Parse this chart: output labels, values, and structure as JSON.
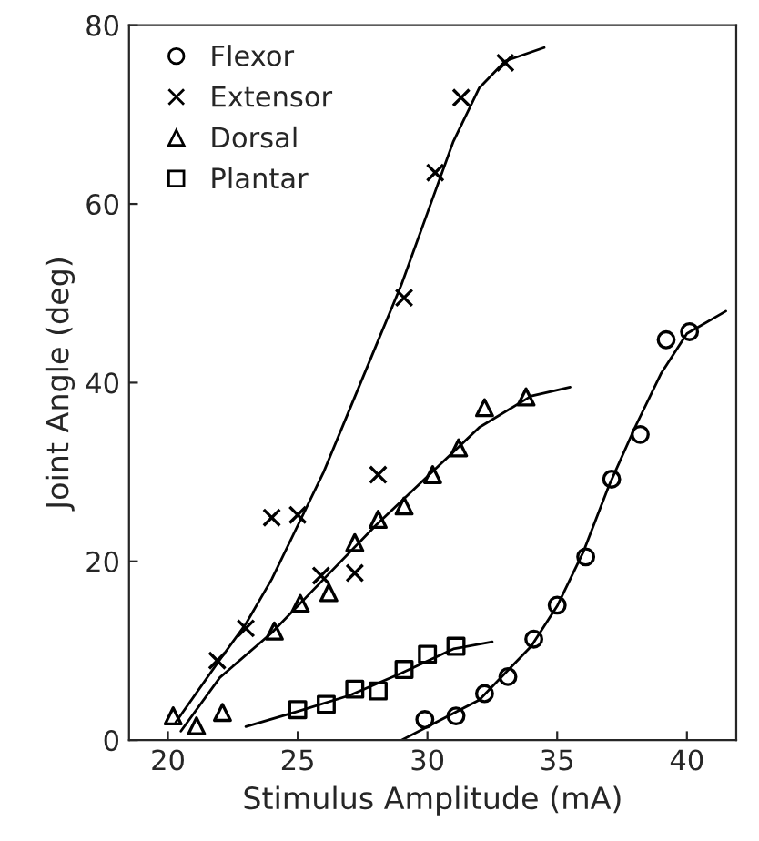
{
  "chart_data": {
    "type": "scatter",
    "xlabel": "Stimulus Amplitude (mA)",
    "ylabel": "Joint Angle (deg)",
    "xlim": [
      18.5,
      41.9
    ],
    "xticks": [
      20,
      25,
      30,
      35,
      40
    ],
    "ylim": [
      0,
      80
    ],
    "yticks": [
      0,
      20,
      40,
      60,
      80
    ],
    "grid": false,
    "legend": "top left",
    "series": [
      {
        "name": "Flexor",
        "color": "#000000",
        "marker": "circle",
        "x": [
          29.9,
          31.1,
          32.2,
          33.1,
          34.1,
          35.0,
          36.1,
          37.1,
          38.2,
          39.2,
          40.1
        ],
        "values": [
          2.3,
          2.7,
          5.2,
          7.1,
          11.3,
          15.1,
          20.5,
          29.2,
          34.2,
          44.8,
          45.7
        ]
      },
      {
        "name": "Extensor",
        "color": "#000000",
        "marker": "cross",
        "x": [
          21.9,
          23.0,
          24.0,
          25.0,
          25.9,
          27.2,
          28.1,
          29.1,
          30.3,
          31.3,
          33.0
        ],
        "values": [
          8.9,
          12.5,
          24.9,
          25.2,
          18.4,
          18.7,
          29.7,
          49.5,
          63.5,
          71.9,
          75.8
        ]
      },
      {
        "name": "Dorsal",
        "color": "#000000",
        "marker": "triangle",
        "x": [
          20.2,
          21.1,
          22.1,
          24.1,
          25.1,
          26.2,
          27.2,
          28.1,
          29.1,
          30.2,
          31.2,
          32.2,
          33.8
        ],
        "values": [
          2.7,
          1.6,
          3.1,
          12.2,
          15.3,
          16.5,
          22.1,
          24.7,
          26.2,
          29.7,
          32.7,
          37.2,
          38.4
        ]
      },
      {
        "name": "Plantar",
        "color": "#000000",
        "marker": "square",
        "x": [
          25.0,
          26.1,
          27.2,
          28.1,
          29.1,
          30.0,
          31.1
        ],
        "values": [
          3.4,
          4.0,
          5.7,
          5.5,
          7.9,
          9.6,
          10.5
        ]
      },
      {
        "type": "line",
        "color": "#000000",
        "marker": "none",
        "line_style": "solid",
        "x": [
          29,
          30,
          32,
          34,
          35,
          36,
          37,
          38,
          39,
          40,
          41.5
        ],
        "values": [
          0,
          1.5,
          4.5,
          10.5,
          15,
          21,
          28.5,
          35,
          41,
          45.5,
          48
        ]
      },
      {
        "type": "line",
        "color": "#000000",
        "marker": "none",
        "line_style": "solid",
        "x": [
          20.3,
          22,
          23,
          24,
          25,
          26,
          27,
          28,
          29,
          30,
          31,
          32,
          33,
          34.5
        ],
        "values": [
          2,
          9,
          13,
          18,
          24,
          30,
          37,
          44,
          51,
          59,
          67,
          73,
          76,
          77.5
        ]
      },
      {
        "type": "line",
        "color": "#000000",
        "marker": "none",
        "line_style": "solid",
        "x": [
          20.5,
          22,
          24,
          26,
          28,
          30,
          32,
          34,
          35.5
        ],
        "values": [
          1,
          7,
          12,
          18,
          24,
          29.5,
          35,
          38.5,
          39.5
        ]
      },
      {
        "type": "line",
        "color": "#000000",
        "marker": "none",
        "line_style": "solid",
        "x": [
          23,
          25,
          27,
          29,
          31,
          32.5
        ],
        "values": [
          1.5,
          3.2,
          5,
          7.5,
          10.2,
          11
        ]
      }
    ]
  }
}
